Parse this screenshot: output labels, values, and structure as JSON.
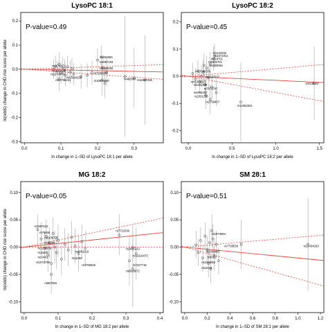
{
  "figure": {
    "ylabel": "ln(odds) change in CHD risk score per allele"
  },
  "colors": {
    "fit_line": "#e8433a",
    "ci_line": "#e8433a",
    "error_bar": "#b0b0b0",
    "point": "#333333"
  },
  "chart_data": [
    {
      "type": "scatter",
      "title": "LysoPC 18:1",
      "pvalue_text": "P-value=0.49",
      "xlabel": "ln change in 1–SD of LysoPC 18:1 per allele",
      "xlim": [
        -0.01,
        0.38
      ],
      "ylim": [
        -0.305,
        0.235
      ],
      "xticks": [
        "0.0",
        "0.1",
        "0.2",
        "0.3"
      ],
      "yticks": [
        "-0.3",
        "-0.2",
        "-0.1",
        "0.0",
        "0.1",
        "0.2"
      ],
      "fit": {
        "slope": -0.03,
        "intercept": 0.0
      },
      "ci": {
        "upper_slope": 0.05,
        "lower_slope": -0.11
      },
      "points": [
        {
          "x": 0.08,
          "y": 0.0,
          "lo": -0.04,
          "hi": 0.04
        },
        {
          "x": 0.085,
          "y": 0.012,
          "lo": -0.03,
          "hi": 0.055
        },
        {
          "x": 0.09,
          "y": -0.008,
          "lo": -0.05,
          "hi": 0.035
        },
        {
          "x": 0.095,
          "y": 0.02,
          "lo": -0.03,
          "hi": 0.07
        },
        {
          "x": 0.1,
          "y": -0.015,
          "lo": -0.06,
          "hi": 0.03
        },
        {
          "x": 0.105,
          "y": 0.005,
          "lo": -0.04,
          "hi": 0.05
        },
        {
          "x": 0.11,
          "y": -0.005,
          "lo": -0.05,
          "hi": 0.04
        },
        {
          "x": 0.112,
          "y": -0.025,
          "lo": -0.07,
          "hi": 0.02
        },
        {
          "x": 0.118,
          "y": 0.01,
          "lo": -0.035,
          "hi": 0.055
        },
        {
          "x": 0.125,
          "y": -0.012,
          "lo": -0.06,
          "hi": 0.035
        },
        {
          "x": 0.13,
          "y": 0.002,
          "lo": -0.04,
          "hi": 0.045
        },
        {
          "x": 0.135,
          "y": -0.02,
          "lo": -0.065,
          "hi": 0.025
        },
        {
          "x": 0.095,
          "y": -0.04,
          "lo": -0.09,
          "hi": 0.01
        },
        {
          "x": 0.155,
          "y": -0.03,
          "lo": -0.08,
          "hi": 0.02
        },
        {
          "x": 0.172,
          "y": -0.025,
          "lo": -0.075,
          "hi": 0.025
        },
        {
          "x": 0.185,
          "y": -0.015,
          "lo": -0.065,
          "hi": 0.035
        },
        {
          "x": 0.2,
          "y": 0.038,
          "lo": -0.01,
          "hi": 0.086
        },
        {
          "x": 0.21,
          "y": 0.05,
          "lo": 0.0,
          "hi": 0.1
        },
        {
          "x": 0.215,
          "y": 0.005,
          "lo": -0.05,
          "hi": 0.06
        },
        {
          "x": 0.225,
          "y": -0.012,
          "lo": -0.07,
          "hi": 0.046
        },
        {
          "x": 0.212,
          "y": -0.045,
          "lo": -0.11,
          "hi": 0.02
        },
        {
          "x": 0.22,
          "y": -0.058,
          "lo": -0.12,
          "hi": 0.004
        },
        {
          "x": 0.3,
          "y": -0.036,
          "lo": -0.16,
          "hi": 0.09
        },
        {
          "x": 0.275,
          "y": -0.03,
          "lo": -0.28,
          "hi": 0.22
        },
        {
          "x": 0.33,
          "y": -0.045,
          "lo": -0.23,
          "hi": 0.14
        }
      ],
      "labels": [
        {
          "text": "rs264653",
          "x": 0.208,
          "y": 0.045
        },
        {
          "text": "rs4987103",
          "x": 0.205,
          "y": 0.025
        },
        {
          "text": "rs1174471",
          "x": 0.075,
          "y": 0.01
        },
        {
          "text": "rs4969505",
          "x": 0.205,
          "y": 0.0
        },
        {
          "text": "rs1171614",
          "x": 0.075,
          "y": -0.01
        },
        {
          "text": "rs7045283",
          "x": 0.19,
          "y": -0.02
        },
        {
          "text": "rs1174478",
          "x": 0.072,
          "y": -0.025
        },
        {
          "text": "rs57094329",
          "x": 0.115,
          "y": -0.04
        },
        {
          "text": "rs10756161",
          "x": 0.085,
          "y": -0.05
        },
        {
          "text": "rs16915660",
          "x": 0.19,
          "y": -0.052
        },
        {
          "text": "rs486964",
          "x": 0.272,
          "y": -0.045
        },
        {
          "text": "rs11997436",
          "x": 0.308,
          "y": -0.05
        }
      ]
    },
    {
      "type": "scatter",
      "title": "LysoPC 18:2",
      "pvalue_text": "P-value=0.45",
      "xlabel": "ln change in 1–SD of LysoPC 18:2 per allele",
      "xlim": [
        -0.08,
        1.55
      ],
      "ylim": [
        -0.245,
        0.235
      ],
      "xticks": [
        "0.0",
        "0.5",
        "1.0",
        "1.5"
      ],
      "yticks": [
        "-0.2",
        "-0.1",
        "0.0",
        "0.1",
        "0.2"
      ],
      "fit": {
        "slope": -0.015,
        "intercept": 0.0
      },
      "ci": {
        "upper_slope": 0.028,
        "lower_slope": -0.06
      },
      "points": [
        {
          "x": 0.05,
          "y": 0.01,
          "lo": -0.03,
          "hi": 0.05
        },
        {
          "x": 0.08,
          "y": -0.01,
          "lo": -0.05,
          "hi": 0.03
        },
        {
          "x": 0.11,
          "y": 0.02,
          "lo": -0.02,
          "hi": 0.06
        },
        {
          "x": 0.13,
          "y": -0.02,
          "lo": -0.06,
          "hi": 0.02
        },
        {
          "x": 0.15,
          "y": 0.0,
          "lo": -0.04,
          "hi": 0.04
        },
        {
          "x": 0.17,
          "y": 0.015,
          "lo": -0.03,
          "hi": 0.06
        },
        {
          "x": 0.19,
          "y": -0.03,
          "lo": -0.07,
          "hi": 0.01
        },
        {
          "x": 0.21,
          "y": 0.03,
          "lo": -0.01,
          "hi": 0.075
        },
        {
          "x": 0.23,
          "y": -0.005,
          "lo": -0.05,
          "hi": 0.04
        },
        {
          "x": 0.25,
          "y": 0.045,
          "lo": 0.0,
          "hi": 0.09
        },
        {
          "x": 0.27,
          "y": -0.04,
          "lo": -0.085,
          "hi": 0.005
        },
        {
          "x": 0.29,
          "y": 0.065,
          "lo": 0.02,
          "hi": 0.11
        },
        {
          "x": 0.3,
          "y": 0.075,
          "lo": 0.03,
          "hi": 0.12
        },
        {
          "x": 0.32,
          "y": -0.06,
          "lo": -0.11,
          "hi": -0.01
        },
        {
          "x": 0.2,
          "y": -0.07,
          "lo": -0.12,
          "hi": -0.02
        },
        {
          "x": 0.25,
          "y": -0.085,
          "lo": -0.14,
          "hi": -0.03
        },
        {
          "x": 0.18,
          "y": 0.04,
          "lo": -0.005,
          "hi": 0.085
        },
        {
          "x": 0.6,
          "y": -0.095,
          "lo": -0.24,
          "hi": 0.05
        },
        {
          "x": 1.44,
          "y": -0.025,
          "lo": -0.16,
          "hi": 0.11
        }
      ],
      "labels": [
        {
          "text": "rs2122932",
          "x": 0.28,
          "y": 0.082
        },
        {
          "text": "rs2271911",
          "x": 0.3,
          "y": 0.072
        },
        {
          "text": "rs116701",
          "x": 0.26,
          "y": 0.06
        },
        {
          "text": "rs9302701",
          "x": 0.23,
          "y": 0.048
        },
        {
          "text": "rs1800961",
          "x": 0.24,
          "y": 0.036
        },
        {
          "text": "rs17048376",
          "x": 0.08,
          "y": 0.014
        },
        {
          "text": "rs2137537",
          "x": 0.2,
          "y": -0.006
        },
        {
          "text": "rs41318177",
          "x": 0.03,
          "y": -0.024
        },
        {
          "text": "rs2301238",
          "x": 0.06,
          "y": -0.036
        },
        {
          "text": "rs7072787",
          "x": 0.18,
          "y": -0.05
        },
        {
          "text": "rs4865257",
          "x": 0.06,
          "y": -0.064
        },
        {
          "text": "rs2301238",
          "x": 0.07,
          "y": -0.078
        },
        {
          "text": "rs2759407",
          "x": 0.2,
          "y": -0.098
        },
        {
          "text": "rs11062531",
          "x": 0.56,
          "y": -0.112
        },
        {
          "text": "rs2138167",
          "x": 1.34,
          "y": -0.03
        }
      ]
    },
    {
      "type": "scatter",
      "title": "MG 18:2",
      "pvalue_text": "P-value=0.05",
      "xlabel": "ln change in 1–SD of MG 18:2 per allele",
      "xlim": [
        -0.01,
        0.41
      ],
      "ylim": [
        -0.12,
        0.12
      ],
      "xticks": [
        "0.0",
        "0.1",
        "0.2",
        "0.3",
        "0.4"
      ],
      "yticks": [
        "-0.10",
        "-0.05",
        "0.00",
        "0.05",
        "0.10"
      ],
      "fit": {
        "slope": 0.065,
        "intercept": 0.0
      },
      "ci": {
        "upper_slope": 0.13,
        "lower_slope": 0.0
      },
      "points": [
        {
          "x": 0.04,
          "y": 0.032,
          "lo": 0.005,
          "hi": 0.06
        },
        {
          "x": 0.05,
          "y": 0.015,
          "lo": -0.015,
          "hi": 0.045
        },
        {
          "x": 0.06,
          "y": -0.002,
          "lo": -0.03,
          "hi": 0.026
        },
        {
          "x": 0.065,
          "y": 0.02,
          "lo": -0.01,
          "hi": 0.05
        },
        {
          "x": 0.07,
          "y": -0.015,
          "lo": -0.045,
          "hi": 0.015
        },
        {
          "x": 0.075,
          "y": 0.008,
          "lo": -0.02,
          "hi": 0.036
        },
        {
          "x": 0.08,
          "y": -0.03,
          "lo": -0.06,
          "hi": 0.0
        },
        {
          "x": 0.085,
          "y": 0.025,
          "lo": -0.005,
          "hi": 0.055
        },
        {
          "x": 0.09,
          "y": 0.0,
          "lo": -0.03,
          "hi": 0.03
        },
        {
          "x": 0.095,
          "y": -0.01,
          "lo": -0.04,
          "hi": 0.02
        },
        {
          "x": 0.1,
          "y": 0.012,
          "lo": -0.018,
          "hi": 0.042
        },
        {
          "x": 0.11,
          "y": -0.022,
          "lo": -0.052,
          "hi": 0.008
        },
        {
          "x": 0.12,
          "y": 0.005,
          "lo": -0.025,
          "hi": 0.035
        },
        {
          "x": 0.13,
          "y": -0.005,
          "lo": -0.035,
          "hi": 0.025
        },
        {
          "x": 0.14,
          "y": 0.018,
          "lo": -0.012,
          "hi": 0.048
        },
        {
          "x": 0.15,
          "y": 0.002,
          "lo": -0.03,
          "hi": 0.034
        },
        {
          "x": 0.16,
          "y": -0.012,
          "lo": -0.044,
          "hi": 0.02
        },
        {
          "x": 0.17,
          "y": 0.01,
          "lo": -0.022,
          "hi": 0.042
        },
        {
          "x": 0.18,
          "y": -0.002,
          "lo": -0.034,
          "hi": 0.03
        },
        {
          "x": 0.08,
          "y": -0.05,
          "lo": -0.085,
          "hi": -0.015
        },
        {
          "x": 0.28,
          "y": 0.022,
          "lo": -0.015,
          "hi": 0.06
        },
        {
          "x": 0.32,
          "y": 0.0,
          "lo": -0.04,
          "hi": 0.04
        },
        {
          "x": 0.33,
          "y": -0.012,
          "lo": -0.06,
          "hi": 0.036
        },
        {
          "x": 0.31,
          "y": -0.025,
          "lo": -0.07,
          "hi": 0.02
        },
        {
          "x": 0.32,
          "y": -0.04,
          "lo": -0.11,
          "hi": 0.03
        }
      ],
      "labels": [
        {
          "text": "rs1997531",
          "x": 0.03,
          "y": 0.036
        },
        {
          "text": "rs76859",
          "x": 0.045,
          "y": 0.025
        },
        {
          "text": "rs8109725",
          "x": 0.06,
          "y": 0.015
        },
        {
          "text": "rs16209",
          "x": 0.06,
          "y": 0.006
        },
        {
          "text": "rs1130009",
          "x": 0.04,
          "y": -0.004
        },
        {
          "text": "rs16040",
          "x": 0.04,
          "y": -0.012
        },
        {
          "text": "rs29441",
          "x": 0.04,
          "y": -0.02
        },
        {
          "text": "rs1072799",
          "x": 0.035,
          "y": -0.03
        },
        {
          "text": "rs4891019",
          "x": 0.15,
          "y": -0.01
        },
        {
          "text": "rs11064",
          "x": 0.14,
          "y": -0.022
        },
        {
          "text": "rs3790826",
          "x": 0.17,
          "y": -0.035
        },
        {
          "text": "rs687059",
          "x": 0.06,
          "y": -0.068
        },
        {
          "text": "rs7712530",
          "x": 0.27,
          "y": 0.028
        },
        {
          "text": "rs2665313",
          "x": 0.3,
          "y": -0.005
        },
        {
          "text": "rs11616473",
          "x": 0.32,
          "y": -0.018
        },
        {
          "text": "rs7107718",
          "x": 0.32,
          "y": -0.035
        },
        {
          "text": "rs6928672",
          "x": 0.3,
          "y": -0.046
        }
      ]
    },
    {
      "type": "scatter",
      "title": "SM 28:1",
      "pvalue_text": "P-value=0.51",
      "xlabel": "ln change in 1–SD of SM 28:1 per allele",
      "xlim": [
        -0.03,
        1.23
      ],
      "ylim": [
        -0.12,
        0.12
      ],
      "xticks": [
        "0.0",
        "0.2",
        "0.4",
        "0.6",
        "0.8",
        "1.0",
        "1.2"
      ],
      "yticks": [
        "-0.10",
        "-0.05",
        "0.00",
        "0.05",
        "0.10"
      ],
      "fit": {
        "slope": -0.02,
        "intercept": 0.0
      },
      "ci": {
        "upper_slope": 0.018,
        "lower_slope": -0.058
      },
      "points": [
        {
          "x": 0.1,
          "y": 0.004,
          "lo": -0.02,
          "hi": 0.03
        },
        {
          "x": 0.12,
          "y": -0.01,
          "lo": -0.035,
          "hi": 0.015
        },
        {
          "x": 0.14,
          "y": 0.012,
          "lo": -0.012,
          "hi": 0.036
        },
        {
          "x": 0.16,
          "y": -0.02,
          "lo": -0.045,
          "hi": 0.005
        },
        {
          "x": 0.18,
          "y": 0.02,
          "lo": -0.005,
          "hi": 0.045
        },
        {
          "x": 0.2,
          "y": -0.005,
          "lo": -0.03,
          "hi": 0.02
        },
        {
          "x": 0.21,
          "y": -0.03,
          "lo": -0.055,
          "hi": -0.005
        },
        {
          "x": 0.22,
          "y": 0.008,
          "lo": -0.018,
          "hi": 0.034
        },
        {
          "x": 0.23,
          "y": -0.04,
          "lo": -0.066,
          "hi": -0.014
        },
        {
          "x": 0.25,
          "y": 0.015,
          "lo": -0.012,
          "hi": 0.042
        },
        {
          "x": 0.26,
          "y": -0.015,
          "lo": -0.042,
          "hi": 0.012
        },
        {
          "x": 0.28,
          "y": 0.005,
          "lo": -0.02,
          "hi": 0.03
        },
        {
          "x": 0.3,
          "y": -0.025,
          "lo": -0.05,
          "hi": 0.0
        },
        {
          "x": 0.24,
          "y": 0.03,
          "lo": 0.0,
          "hi": 0.06
        },
        {
          "x": 0.5,
          "y": 0.005,
          "lo": -0.04,
          "hi": 0.05
        },
        {
          "x": 1.09,
          "y": 0.005,
          "lo": -0.08,
          "hi": 0.09
        }
      ],
      "labels": [
        {
          "text": "rs1873994",
          "x": 0.24,
          "y": 0.022
        },
        {
          "text": "rs7738538",
          "x": 0.35,
          "y": 0.0
        },
        {
          "text": "rs1004867",
          "x": 0.19,
          "y": -0.01
        },
        {
          "text": "rs4982",
          "x": 0.2,
          "y": -0.02
        },
        {
          "text": "rs1044862",
          "x": 0.15,
          "y": -0.03
        },
        {
          "text": "rs11044",
          "x": 0.15,
          "y": -0.04
        },
        {
          "text": "rs12434193",
          "x": 1.05,
          "y": 0.0
        }
      ]
    }
  ]
}
